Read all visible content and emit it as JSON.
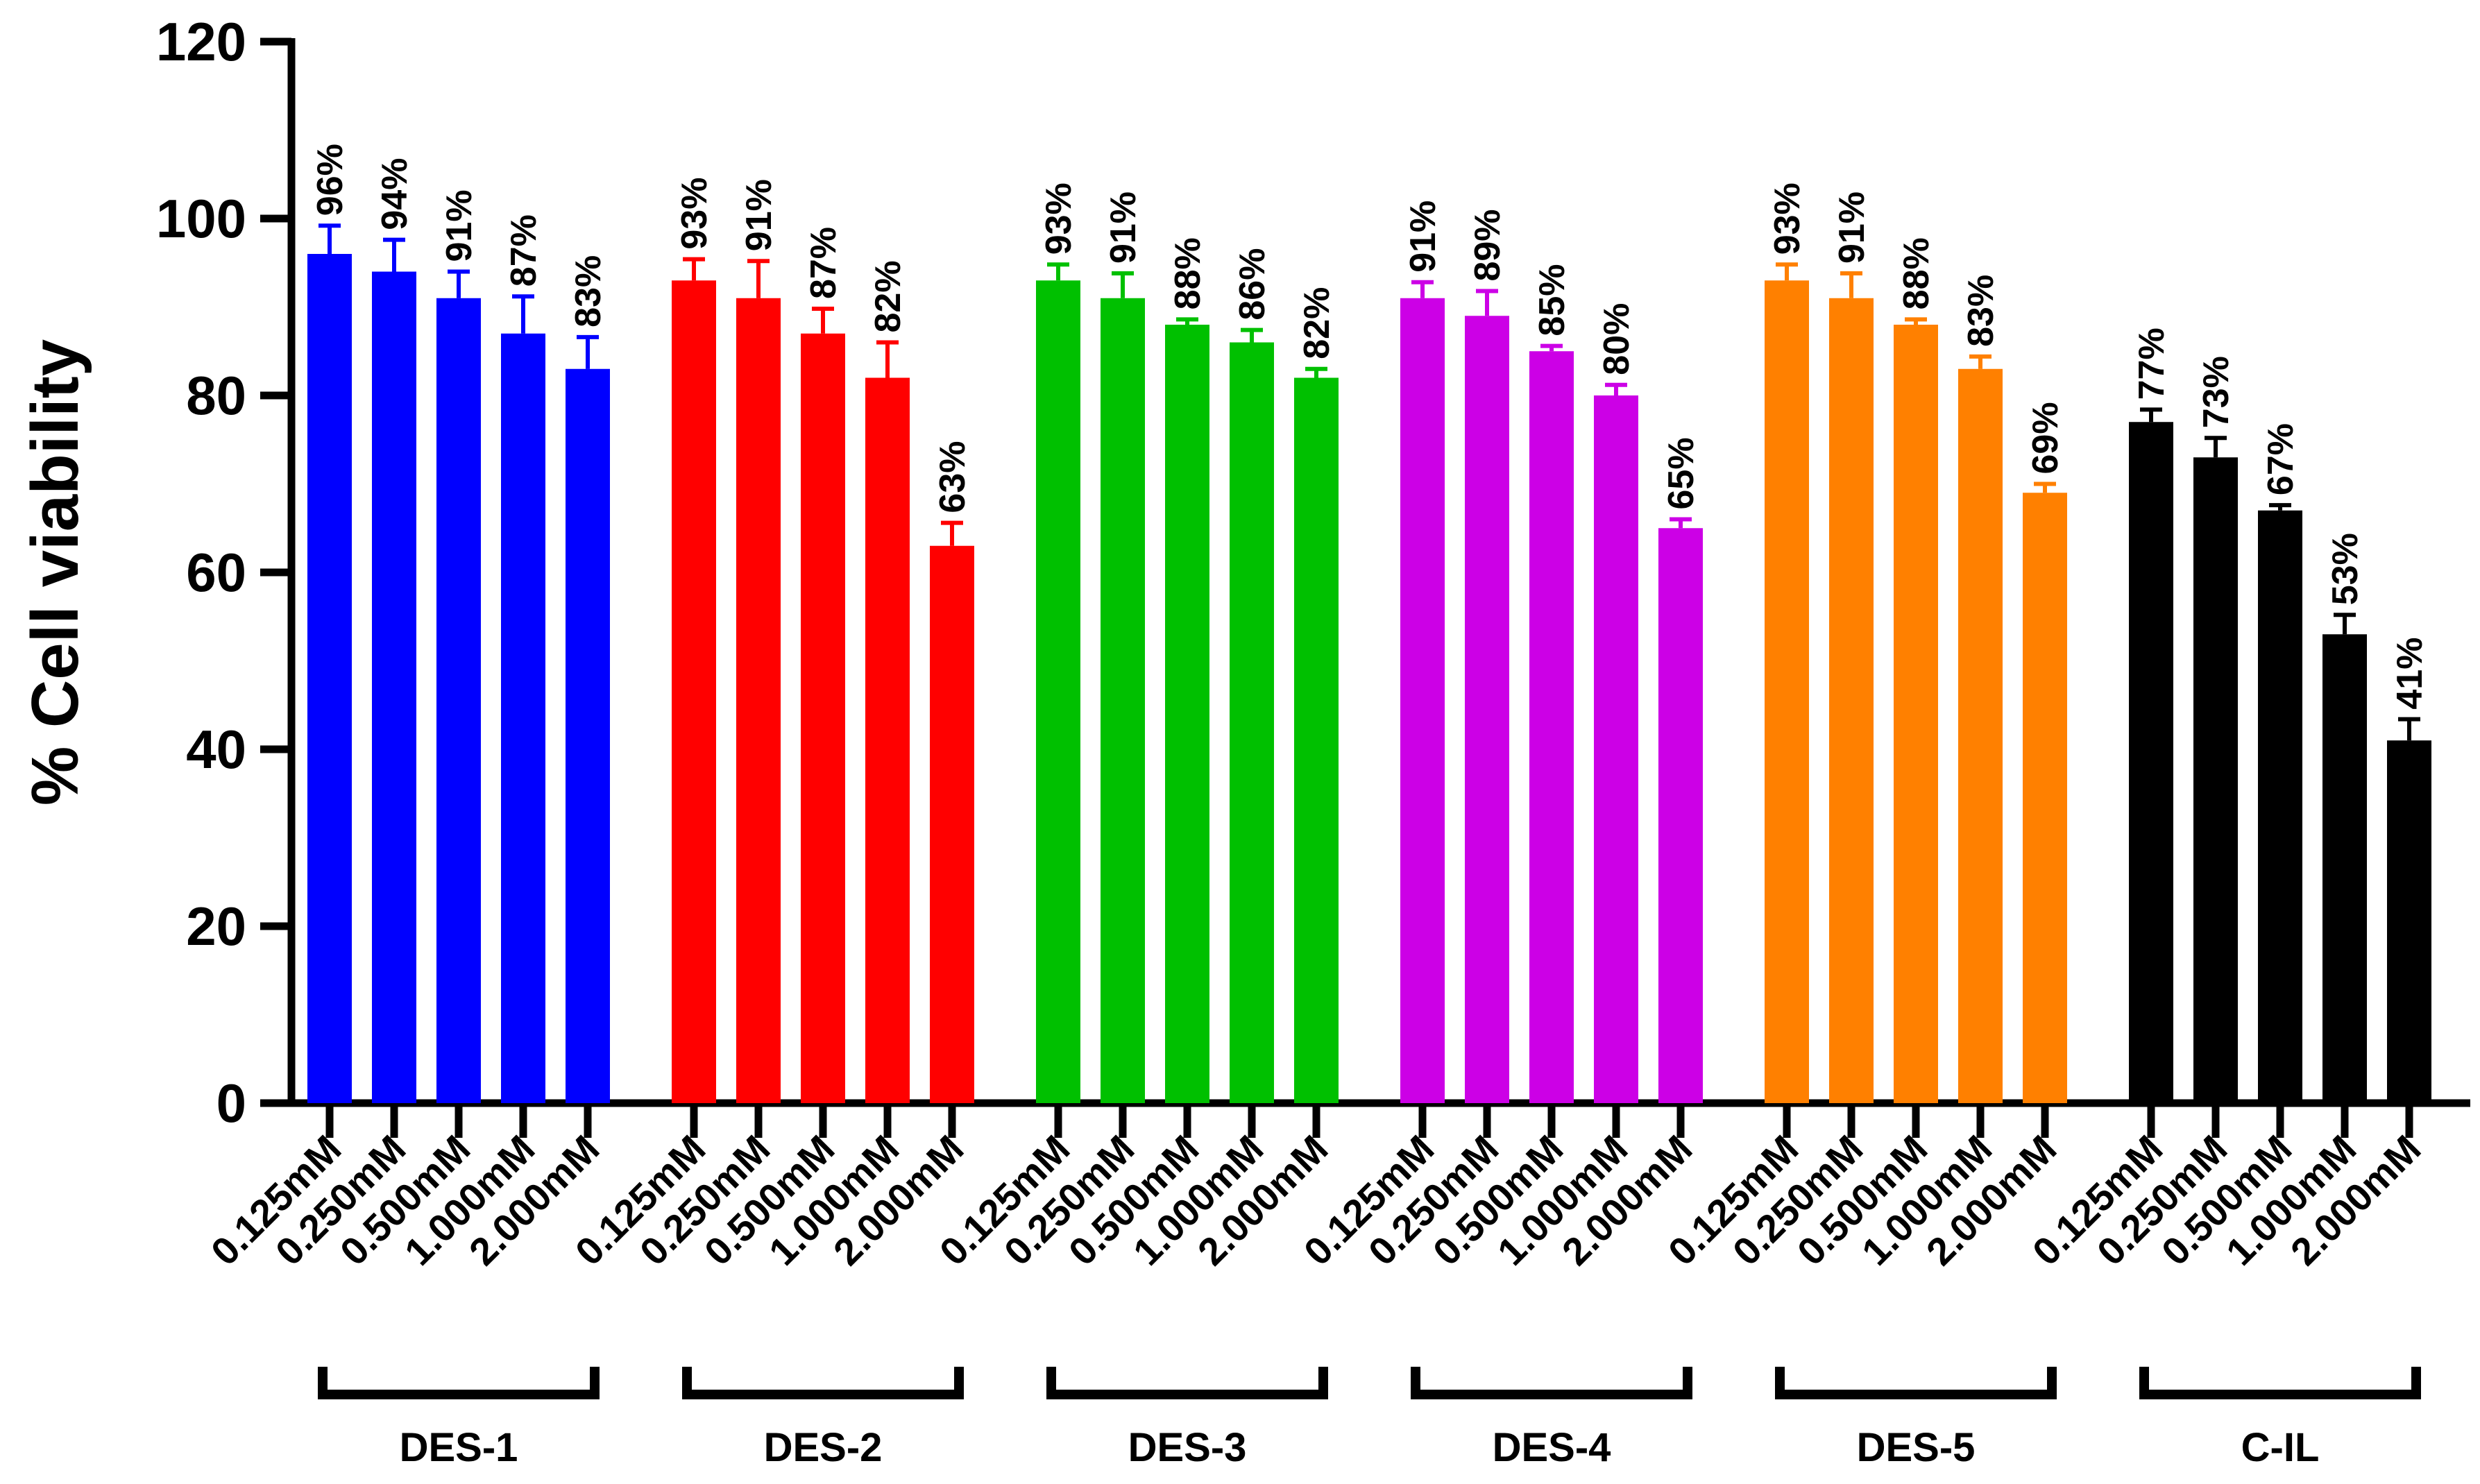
{
  "chart_data": {
    "type": "bar",
    "title": "",
    "xlabel": "",
    "ylabel": "% Cell viability",
    "ylim": [
      0,
      120
    ],
    "yticks": [
      0,
      20,
      40,
      60,
      80,
      100,
      120
    ],
    "grid": false,
    "categories": [
      "0.125mM",
      "0.250mM",
      "0.500mM",
      "1.000mM",
      "2.000mM"
    ],
    "series": [
      {
        "name": "DES-1",
        "color": "#0000ff",
        "values": [
          96,
          94,
          91,
          87,
          83
        ],
        "errors": [
          3.2,
          3.6,
          3.0,
          4.2,
          3.6
        ],
        "labels": [
          "96%",
          "94%",
          "91%",
          "87%",
          "83%"
        ]
      },
      {
        "name": "DES-2",
        "color": "#ff0000",
        "values": [
          93,
          91,
          87,
          82,
          63
        ],
        "errors": [
          2.4,
          4.2,
          2.8,
          4.0,
          2.6
        ],
        "labels": [
          "93%",
          "91%",
          "87%",
          "82%",
          "63%"
        ]
      },
      {
        "name": "DES-3",
        "color": "#00c000",
        "values": [
          93,
          91,
          88,
          86,
          82
        ],
        "errors": [
          1.8,
          2.8,
          0.6,
          1.4,
          1.0
        ],
        "labels": [
          "93%",
          "91%",
          "88%",
          "86%",
          "82%"
        ]
      },
      {
        "name": "DES-4",
        "color": "#cc00e6",
        "values": [
          91,
          89,
          85,
          80,
          65
        ],
        "errors": [
          1.8,
          2.8,
          0.6,
          1.2,
          1.0
        ],
        "labels": [
          "91%",
          "89%",
          "85%",
          "80%",
          "65%"
        ]
      },
      {
        "name": "DES-5",
        "color": "#ff8000",
        "values": [
          93,
          91,
          88,
          83,
          69
        ],
        "errors": [
          1.8,
          2.8,
          0.6,
          1.4,
          1.0
        ],
        "labels": [
          "93%",
          "91%",
          "88%",
          "83%",
          "69%"
        ]
      },
      {
        "name": "C-IL",
        "color": "#000000",
        "values": [
          77,
          73,
          67,
          53,
          41
        ],
        "errors": [
          1.4,
          2.2,
          0.6,
          2.2,
          2.4
        ],
        "labels": [
          "77%",
          "73%",
          "67%",
          "53%",
          "41%"
        ]
      }
    ]
  }
}
